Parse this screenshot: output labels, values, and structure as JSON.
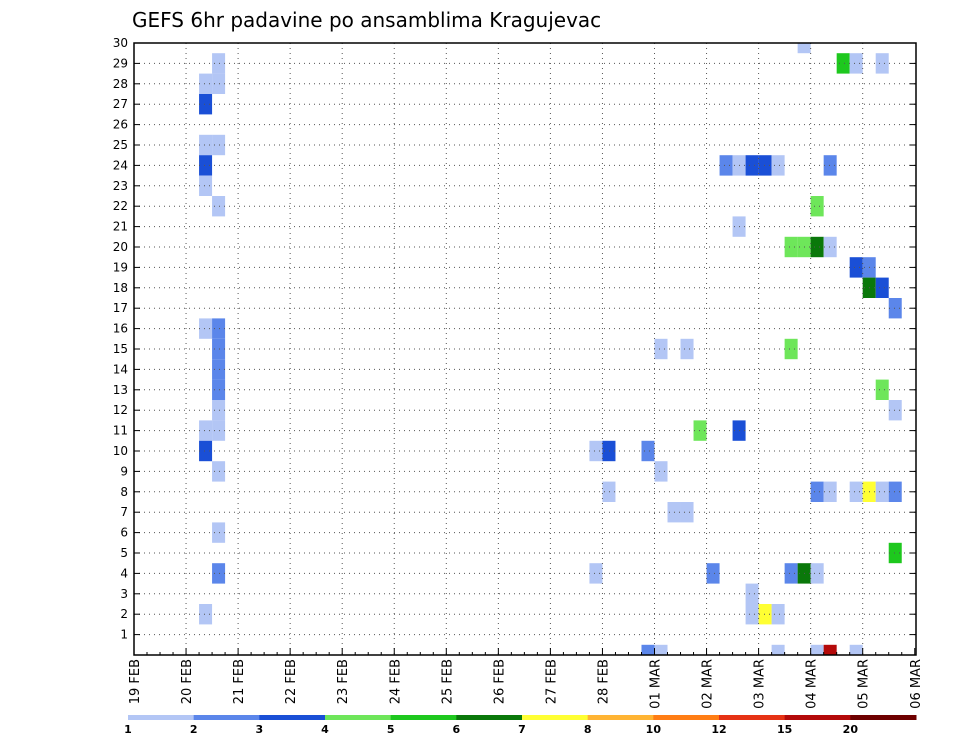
{
  "chart_data": {
    "type": "heatmap",
    "title": "GEFS 6hr padavine po ansamblima Kragujevac",
    "xlabel": "",
    "ylabel": "",
    "x_tick_labels": [
      "19 FEB",
      "20 FEB",
      "21 FEB",
      "22 FEB",
      "23 FEB",
      "24 FEB",
      "25 FEB",
      "26 FEB",
      "27 FEB",
      "28 FEB",
      "01 MAR",
      "02 MAR",
      "03 MAR",
      "04 MAR",
      "05 MAR",
      "06 MAR"
    ],
    "x_range_days": [
      0,
      15.1
    ],
    "y_tick_labels": [
      "1",
      "2",
      "3",
      "4",
      "5",
      "6",
      "7",
      "8",
      "9",
      "10",
      "11",
      "12",
      "13",
      "14",
      "15",
      "16",
      "17",
      "18",
      "19",
      "20",
      "21",
      "22",
      "23",
      "24",
      "25",
      "26",
      "27",
      "28",
      "29",
      "30"
    ],
    "y_range": [
      0,
      30
    ],
    "grid": true,
    "colorbar": {
      "levels": [
        "1",
        "2",
        "3",
        "4",
        "5",
        "6",
        "7",
        "8",
        "10",
        "12",
        "15",
        "20"
      ],
      "colors": [
        "#b3c6f5",
        "#5b86ea",
        "#1a4fd6",
        "#6ee65a",
        "#1ec81e",
        "#0a780a",
        "#ffff33",
        "#ffb433",
        "#ff7d14",
        "#e63214",
        "#b40a0a",
        "#6e0000"
      ]
    },
    "cell_width_days": 0.25,
    "cells": [
      {
        "x": 1.5,
        "y": 29,
        "c": 0
      },
      {
        "x": 1.25,
        "y": 28,
        "c": 0
      },
      {
        "x": 1.5,
        "y": 28,
        "c": 0
      },
      {
        "x": 1.25,
        "y": 27,
        "c": 2
      },
      {
        "x": 1.25,
        "y": 25,
        "c": 0
      },
      {
        "x": 1.5,
        "y": 25,
        "c": 0
      },
      {
        "x": 1.25,
        "y": 24,
        "c": 2
      },
      {
        "x": 1.25,
        "y": 23,
        "c": 0
      },
      {
        "x": 1.5,
        "y": 22,
        "c": 0
      },
      {
        "x": 1.25,
        "y": 16,
        "c": 0
      },
      {
        "x": 1.5,
        "y": 16,
        "c": 1
      },
      {
        "x": 1.5,
        "y": 15,
        "c": 1
      },
      {
        "x": 1.5,
        "y": 14,
        "c": 1
      },
      {
        "x": 1.5,
        "y": 13,
        "c": 1
      },
      {
        "x": 1.5,
        "y": 12,
        "c": 0
      },
      {
        "x": 1.25,
        "y": 11,
        "c": 0
      },
      {
        "x": 1.5,
        "y": 11,
        "c": 0
      },
      {
        "x": 1.25,
        "y": 10,
        "c": 2
      },
      {
        "x": 1.5,
        "y": 9,
        "c": 0
      },
      {
        "x": 1.5,
        "y": 6,
        "c": 0
      },
      {
        "x": 1.5,
        "y": 4,
        "c": 1
      },
      {
        "x": 1.25,
        "y": 2,
        "c": 0
      },
      {
        "x": 8.75,
        "y": 10,
        "c": 0
      },
      {
        "x": 9,
        "y": 10,
        "c": 2
      },
      {
        "x": 9,
        "y": 8,
        "c": 0
      },
      {
        "x": 8.75,
        "y": 4,
        "c": 0
      },
      {
        "x": 9.75,
        "y": 10,
        "c": 1
      },
      {
        "x": 9.75,
        "y": 0,
        "c": 1
      },
      {
        "x": 10,
        "y": 0,
        "c": 0
      },
      {
        "x": 10,
        "y": 15,
        "c": 0
      },
      {
        "x": 10.5,
        "y": 15,
        "c": 0
      },
      {
        "x": 10,
        "y": 9,
        "c": 0
      },
      {
        "x": 10.25,
        "y": 7,
        "c": 0
      },
      {
        "x": 10.5,
        "y": 7,
        "c": 0
      },
      {
        "x": 10.75,
        "y": 11,
        "c": 3
      },
      {
        "x": 11,
        "y": 4,
        "c": 1
      },
      {
        "x": 11.25,
        "y": 24,
        "c": 1
      },
      {
        "x": 11.5,
        "y": 24,
        "c": 0
      },
      {
        "x": 11.75,
        "y": 24,
        "c": 2
      },
      {
        "x": 12,
        "y": 24,
        "c": 2
      },
      {
        "x": 12.25,
        "y": 24,
        "c": 0
      },
      {
        "x": 11.5,
        "y": 21,
        "c": 0
      },
      {
        "x": 11.5,
        "y": 11,
        "c": 2
      },
      {
        "x": 11.75,
        "y": 3,
        "c": 0
      },
      {
        "x": 11.75,
        "y": 2,
        "c": 0
      },
      {
        "x": 12,
        "y": 2,
        "c": 6
      },
      {
        "x": 12.25,
        "y": 2,
        "c": 0
      },
      {
        "x": 12.25,
        "y": 0,
        "c": 0
      },
      {
        "x": 12.75,
        "y": 30,
        "c": 0
      },
      {
        "x": 12.5,
        "y": 20,
        "c": 3
      },
      {
        "x": 12.75,
        "y": 20,
        "c": 3
      },
      {
        "x": 13,
        "y": 20,
        "c": 5
      },
      {
        "x": 13.25,
        "y": 20,
        "c": 0
      },
      {
        "x": 12.5,
        "y": 15,
        "c": 3
      },
      {
        "x": 13,
        "y": 22,
        "c": 3
      },
      {
        "x": 13.25,
        "y": 24,
        "c": 1
      },
      {
        "x": 13,
        "y": 8,
        "c": 1
      },
      {
        "x": 13.25,
        "y": 8,
        "c": 0
      },
      {
        "x": 12.5,
        "y": 4,
        "c": 1
      },
      {
        "x": 12.75,
        "y": 4,
        "c": 5
      },
      {
        "x": 13,
        "y": 4,
        "c": 0
      },
      {
        "x": 13,
        "y": 0,
        "c": 0
      },
      {
        "x": 13.25,
        "y": 0,
        "c": 10
      },
      {
        "x": 13.5,
        "y": 29,
        "c": 4
      },
      {
        "x": 13.75,
        "y": 29,
        "c": 0
      },
      {
        "x": 14.25,
        "y": 29,
        "c": 0
      },
      {
        "x": 13.75,
        "y": 19,
        "c": 2
      },
      {
        "x": 14,
        "y": 19,
        "c": 1
      },
      {
        "x": 14,
        "y": 18,
        "c": 5
      },
      {
        "x": 14.25,
        "y": 18,
        "c": 2
      },
      {
        "x": 14.5,
        "y": 17,
        "c": 1
      },
      {
        "x": 14.25,
        "y": 13,
        "c": 3
      },
      {
        "x": 14.5,
        "y": 12,
        "c": 0
      },
      {
        "x": 13.75,
        "y": 8,
        "c": 0
      },
      {
        "x": 14,
        "y": 8,
        "c": 6
      },
      {
        "x": 14.25,
        "y": 8,
        "c": 0
      },
      {
        "x": 14.5,
        "y": 8,
        "c": 1
      },
      {
        "x": 14.5,
        "y": 5,
        "c": 4
      },
      {
        "x": 13.75,
        "y": 0,
        "c": 0
      }
    ]
  }
}
